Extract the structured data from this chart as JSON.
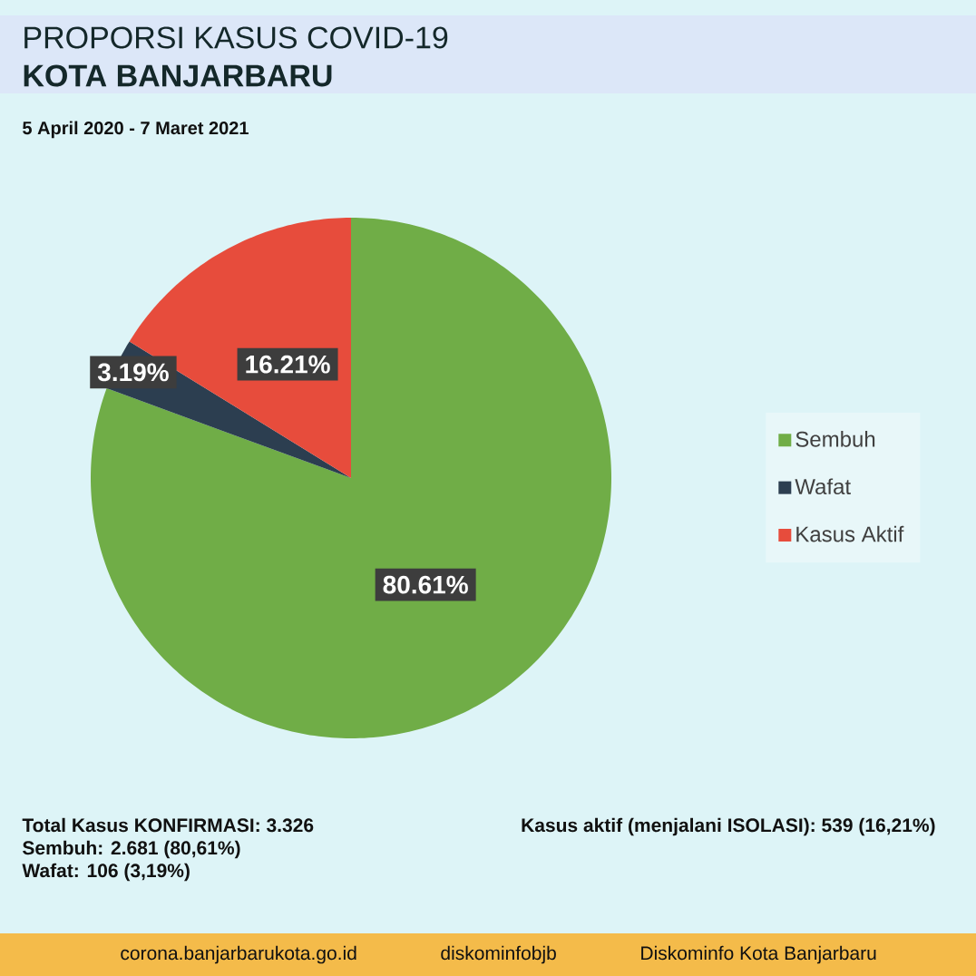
{
  "chart_data": {
    "type": "pie",
    "title": "PROPORSI KASUS COVID-19 **KOTA BANJARBARU**",
    "subtitle": "5 April 2020 - 7 Maret 2021",
    "categories": [
      "Sembuh",
      "Wafat",
      "Kasus Aktif"
    ],
    "values": [
      80.61,
      3.19,
      16.21
    ],
    "colors": [
      "#70ad47",
      "#2c3e50",
      "#e74c3c"
    ],
    "value_labels": [
      "80.61%",
      "3.19%",
      "16.21%"
    ],
    "legend": "right",
    "annotations": [
      "Total Kasus KONFIRMASI: 3.326",
      "Sembuh: 2.681 (80,61%)",
      "Wafat: 106 (3,19%)",
      "Kasus aktif (menjalani ISOLASI): 539 (16,21%)",
      "corona.banjarbarukota.go.id",
      "diskominfobjb",
      "Diskominfo Kota Banjarbaru"
    ]
  }
}
